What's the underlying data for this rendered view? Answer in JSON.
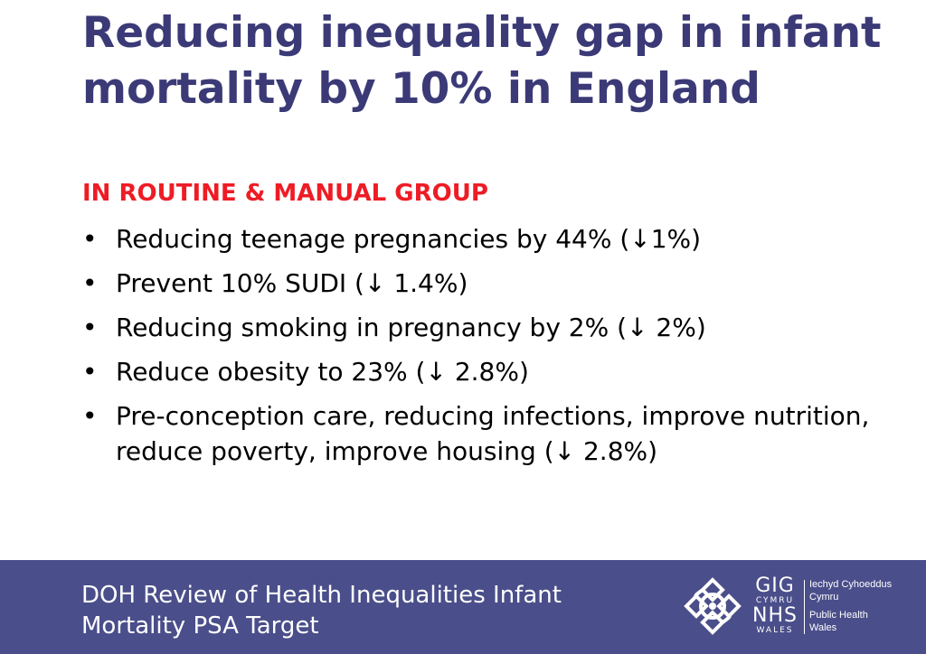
{
  "slide": {
    "title": "Reducing inequality gap in infant mortality by 10% in England",
    "subtitle": "IN ROUTINE & MANUAL GROUP",
    "bullet_symbol": "•",
    "bullets": [
      "Reducing teenage pregnancies by 44% (↓1%)",
      "Prevent 10% SUDI (↓ 1.4%)",
      "Reducing smoking in pregnancy by 2% (↓ 2%)",
      "Reduce obesity to 23% (↓ 2.8%)",
      "Pre-conception care, reducing infections, improve nutrition, reduce poverty, improve housing (↓ 2.8%)"
    ]
  },
  "footer": {
    "text": "DOH Review of Health Inequalities Infant Mortality PSA Target",
    "background_color": "#4a4e8a",
    "logo": {
      "icon": "celtic-knot-icon",
      "gig": "GIG",
      "cymru": "CYMRU",
      "nhs": "NHS",
      "wales": "WALES",
      "welsh_name_line1": "Iechyd Cyhoeddus",
      "welsh_name_line2": "Cymru",
      "english_name_line1": "Public Health",
      "english_name_line2": "Wales"
    }
  },
  "colors": {
    "title": "#3b3a77",
    "subtitle": "#ee1c25",
    "body_text": "#000000"
  }
}
